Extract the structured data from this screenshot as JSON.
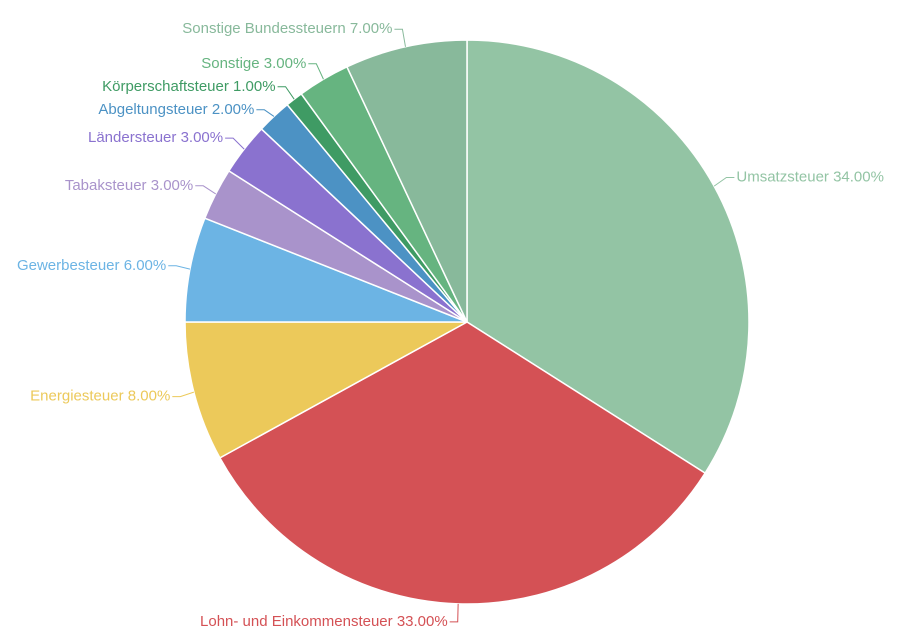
{
  "chart_data": {
    "type": "pie",
    "categories": [
      "Umsatzsteuer",
      "Lohn- und Einkommensteuer",
      "Energiesteuer",
      "Gewerbesteuer",
      "Tabaksteuer",
      "Ländersteuer",
      "Abgeltungsteuer",
      "Körperschaftsteuer",
      "Sonstige",
      "Sonstige Bundessteuern"
    ],
    "values": [
      34,
      33,
      8,
      6,
      3,
      3,
      2,
      1,
      3,
      7
    ],
    "value_labels": [
      "34.00%",
      "33.00%",
      "8.00%",
      "6.00%",
      "3.00%",
      "3.00%",
      "2.00%",
      "1.00%",
      "3.00%",
      "7.00%"
    ],
    "colors": [
      "#93c4a4",
      "#d45155",
      "#ecc95a",
      "#6cb4e4",
      "#a993cb",
      "#8a72cf",
      "#4c92c4",
      "#3f9b64",
      "#66b480",
      "#88b99b"
    ]
  }
}
